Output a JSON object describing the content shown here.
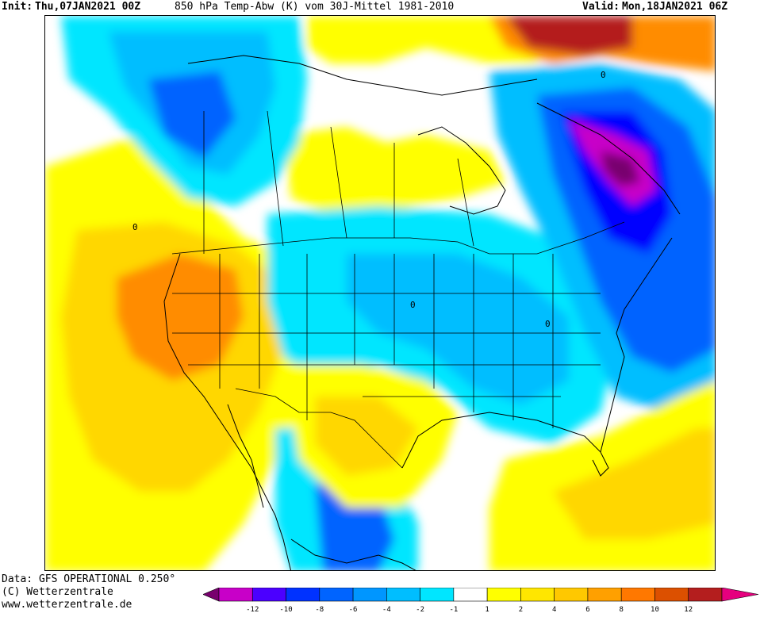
{
  "header": {
    "init_label": "Init:",
    "init_value": "Thu,07JAN2021 00Z",
    "title": "850 hPa Temp-Abw (K) vom 30J-Mittel 1981-2010",
    "valid_label": "Valid:",
    "valid_value": "Mon,18JAN2021 06Z"
  },
  "footer": {
    "data_source": "Data: GFS OPERATIONAL 0.250°",
    "copyright": "(C) Wetterzentrale",
    "url": "www.wetterzentrale.de"
  },
  "colors": {
    "neutral": "#ffffff",
    "yellow": "#ffff00",
    "gold": "#ffd700",
    "orange_light": "#ffb400",
    "orange": "#ff8c00",
    "deep_purple": "#78006e",
    "magenta": "#c800c8",
    "blue_dark": "#0000ff",
    "blue": "#0064ff",
    "dodger": "#0096ff",
    "sky": "#00beff",
    "cyan": "#00e6ff",
    "dark_red": "#b41e1e",
    "pink": "#e6007e"
  },
  "legend": {
    "tick_labels": [
      "-12",
      "-10",
      "-8",
      "-6",
      "-4",
      "-2",
      "-1",
      "1",
      "2",
      "4",
      "6",
      "8",
      "10",
      "12"
    ],
    "bins": [
      {
        "color": "#c800c8"
      },
      {
        "color": "#4b00ff"
      },
      {
        "color": "#0032ff"
      },
      {
        "color": "#0064ff"
      },
      {
        "color": "#0096ff"
      },
      {
        "color": "#00beff"
      },
      {
        "color": "#00e6ff"
      },
      {
        "color": "#ffffff"
      },
      {
        "color": "#ffff00"
      },
      {
        "color": "#ffe600"
      },
      {
        "color": "#ffc800"
      },
      {
        "color": "#ffa000"
      },
      {
        "color": "#ff7800"
      },
      {
        "color": "#dc5000"
      },
      {
        "color": "#b41e1e"
      }
    ],
    "low_end_color": "#78006e",
    "high_end_color": "#e6007e"
  },
  "map": {
    "contour_label": "0"
  }
}
